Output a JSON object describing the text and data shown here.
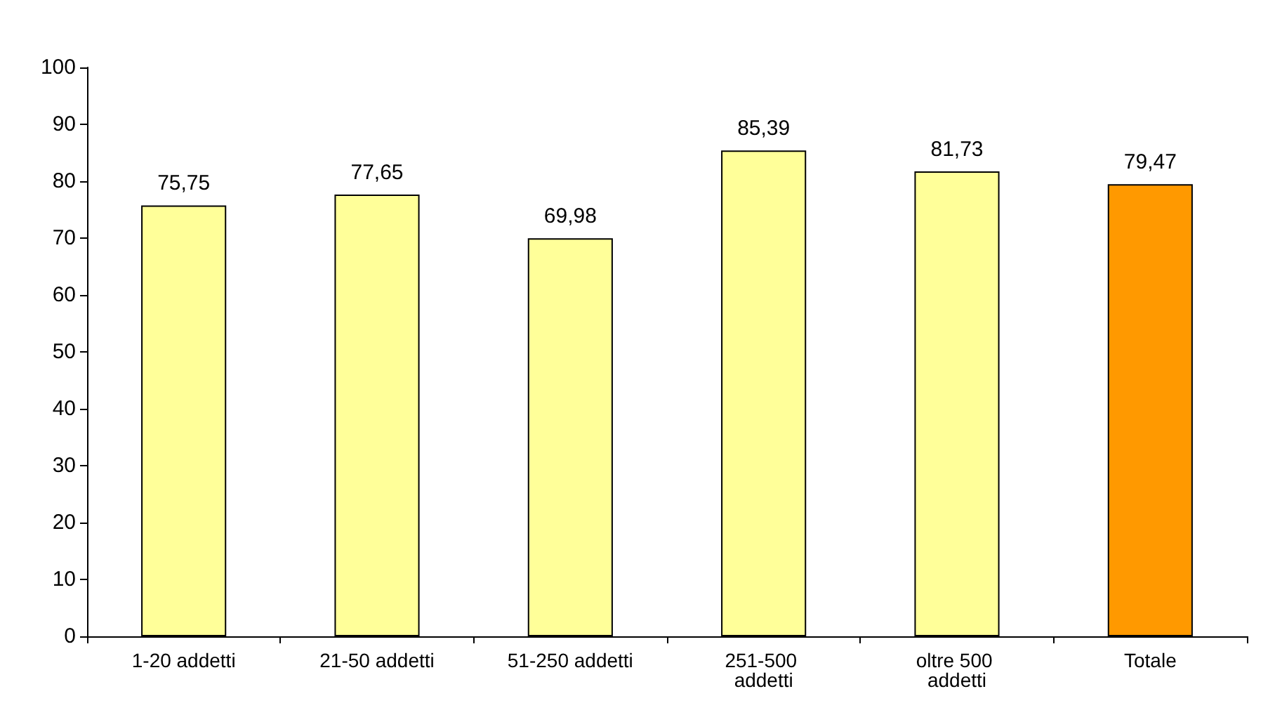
{
  "chart_data": {
    "type": "bar",
    "categories": [
      "1-20 addetti",
      "21-50 addetti",
      "51-250 addetti",
      "251-500 addetti",
      "oltre 500 addetti",
      "Totale"
    ],
    "values": [
      75.75,
      77.65,
      69.98,
      85.39,
      81.73,
      79.47
    ],
    "colors": [
      "#ffff99",
      "#ffff99",
      "#ffff99",
      "#ffff99",
      "#ffff99",
      "#ff9900"
    ],
    "value_labels": [
      "75,75",
      "77,65",
      "69,98",
      "85,39",
      "81,73",
      "79,47"
    ],
    "ylim": [
      0,
      100
    ],
    "yticks": [
      0,
      10,
      20,
      30,
      40,
      50,
      60,
      70,
      80,
      90,
      100
    ],
    "grid": false
  }
}
